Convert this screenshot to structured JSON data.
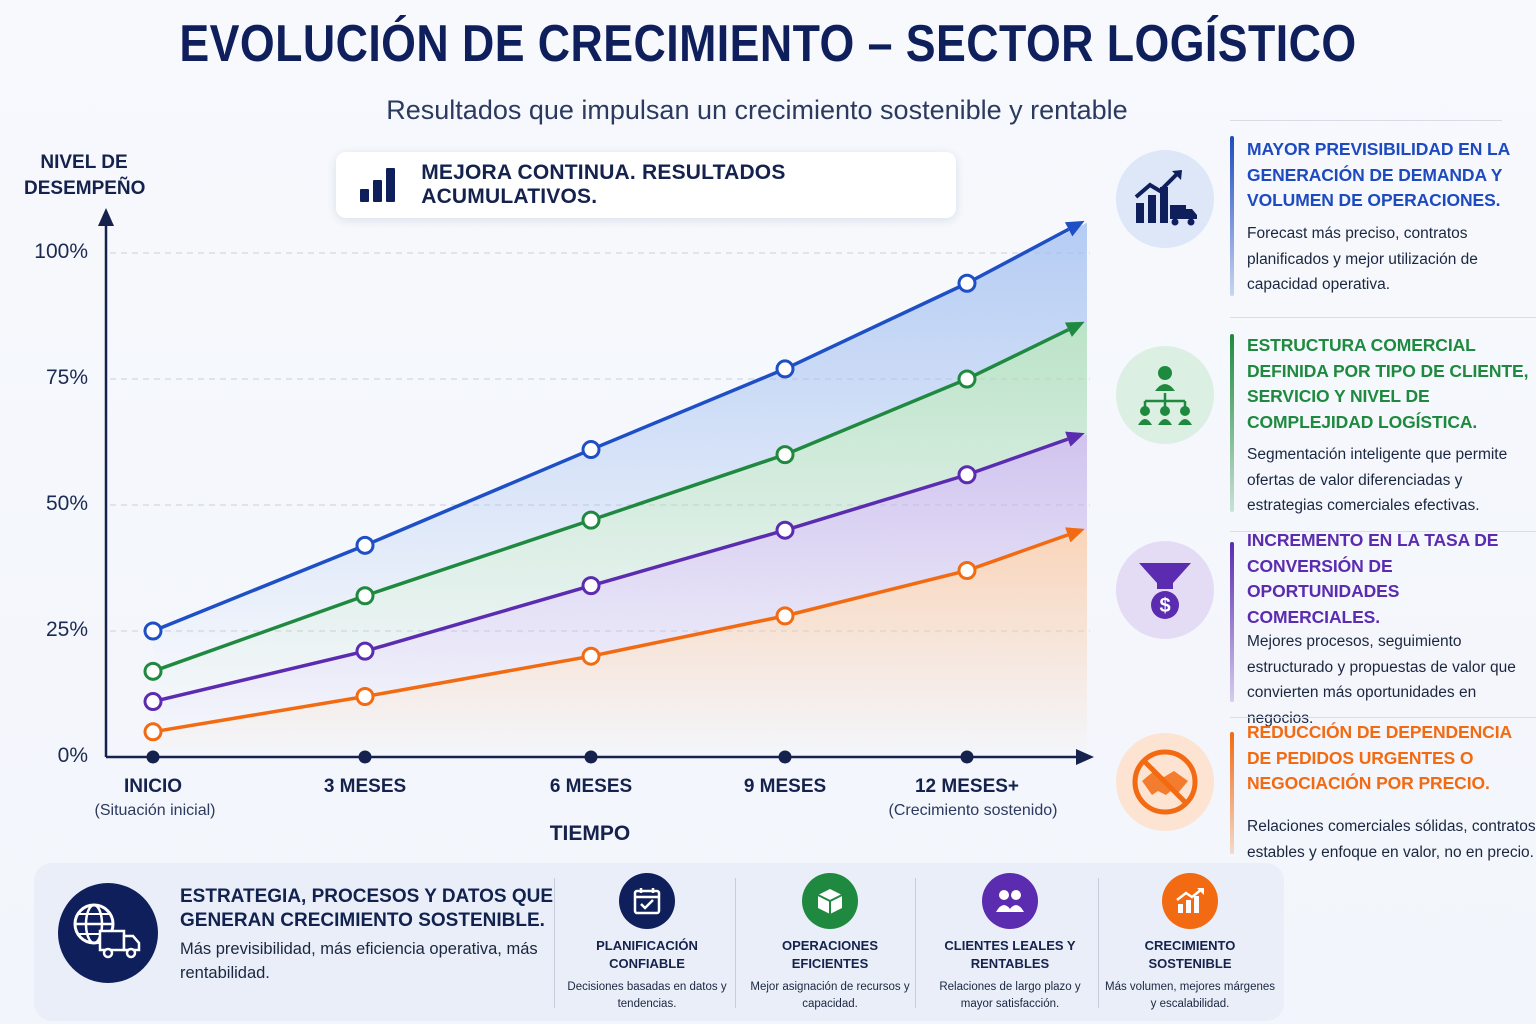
{
  "title": "EVOLUCIÓN DE CRECIMIENTO – SECTOR LOGÍSTICO",
  "subtitle": "Resultados que impulsan un crecimiento sostenible y rentable",
  "banner": {
    "text": "MEJORA CONTINUA. RESULTADOS ACUMULATIVOS.",
    "icon": "bar-chart-icon"
  },
  "chart_data": {
    "type": "line",
    "ylabel": "NIVEL DE DESEMPEÑO",
    "xlabel": "TIEMPO",
    "ylim": [
      0,
      100
    ],
    "yticks": [
      "0%",
      "25%",
      "50%",
      "75%",
      "100%"
    ],
    "grid": "horizontal dashed",
    "area_fill": true,
    "categories": [
      {
        "label": "INICIO",
        "sub": "(Situación inicial)"
      },
      {
        "label": "3 MESES",
        "sub": ""
      },
      {
        "label": "6 MESES",
        "sub": ""
      },
      {
        "label": "9 MESES",
        "sub": ""
      },
      {
        "label": "12 MESES+",
        "sub": "(Crecimiento sostenido)"
      }
    ],
    "series": [
      {
        "color": "#1e4fc4",
        "fill": "#9fbdf0",
        "values": [
          25,
          42,
          61,
          77,
          94
        ],
        "end": 106
      },
      {
        "color": "#1f8a3f",
        "fill": "#a8dcb6",
        "values": [
          17,
          32,
          47,
          60,
          75
        ],
        "end": 86
      },
      {
        "color": "#5b2bb0",
        "fill": "#c4b2ea",
        "values": [
          11,
          21,
          34,
          45,
          56
        ],
        "end": 64
      },
      {
        "color": "#f26a12",
        "fill": "#fbc9a3",
        "values": [
          5,
          12,
          20,
          28,
          37
        ],
        "end": 45
      }
    ]
  },
  "cards": [
    {
      "icon": "growth-chart-truck-icon",
      "color": "#1d4bbf",
      "title": "MAYOR PREVISIBILIDAD EN LA GENERACIÓN DE DEMANDA Y VOLUMEN DE OPERACIONES.",
      "body": "Forecast más preciso, contratos planificados y mejor utilización de capacidad operativa."
    },
    {
      "icon": "org-structure-icon",
      "color": "#1f8a3f",
      "title": "ESTRUCTURA COMERCIAL DEFINIDA POR TIPO DE CLIENTE, SERVICIO Y NIVEL DE COMPLEJIDAD LOGÍSTICA.",
      "body": "Segmentación inteligente que permite ofertas de valor diferenciadas y estrategias comerciales efectivas."
    },
    {
      "icon": "funnel-dollar-icon",
      "color": "#5b2bb0",
      "title": "INCREMENTO EN LA TASA DE CONVERSIÓN DE OPORTUNIDADES COMERCIALES.",
      "body": "Mejores procesos, seguimiento estructurado y propuestas de valor que convierten más oportunidades en negocios."
    },
    {
      "icon": "no-handshake-icon",
      "color": "#f26a12",
      "title": "REDUCCIÓN DE DEPENDENCIA DE PEDIDOS URGENTES O NEGOCIACIÓN POR PRECIO.",
      "body": "Relaciones comerciales sólidas, contratos estables y enfoque en valor, no en precio."
    }
  ],
  "bottom": {
    "icon": "globe-truck-icon",
    "head": "ESTRATEGIA, PROCESOS Y DATOS QUE GENERAN CRECIMIENTO SOSTENIBLE.",
    "text": "Más previsibilidad, más eficiencia operativa, más rentabilidad.",
    "features": [
      {
        "icon": "calendar-check-icon",
        "color": "#0f1f5c",
        "head": "PLANIFICACIÓN CONFIABLE",
        "body": "Decisiones basadas en datos y tendencias."
      },
      {
        "icon": "box-icon",
        "color": "#1f8a3f",
        "head": "OPERACIONES EFICIENTES",
        "body": "Mejor asignación de recursos y capacidad."
      },
      {
        "icon": "users-icon",
        "color": "#5b2bb0",
        "head": "CLIENTES LEALES Y RENTABLES",
        "body": "Relaciones de largo plazo y mayor satisfacción."
      },
      {
        "icon": "trend-up-icon",
        "color": "#f26a12",
        "head": "CRECIMIENTO SOSTENIBLE",
        "body": "Más volumen, mejores márgenes y escalabilidad."
      }
    ]
  }
}
